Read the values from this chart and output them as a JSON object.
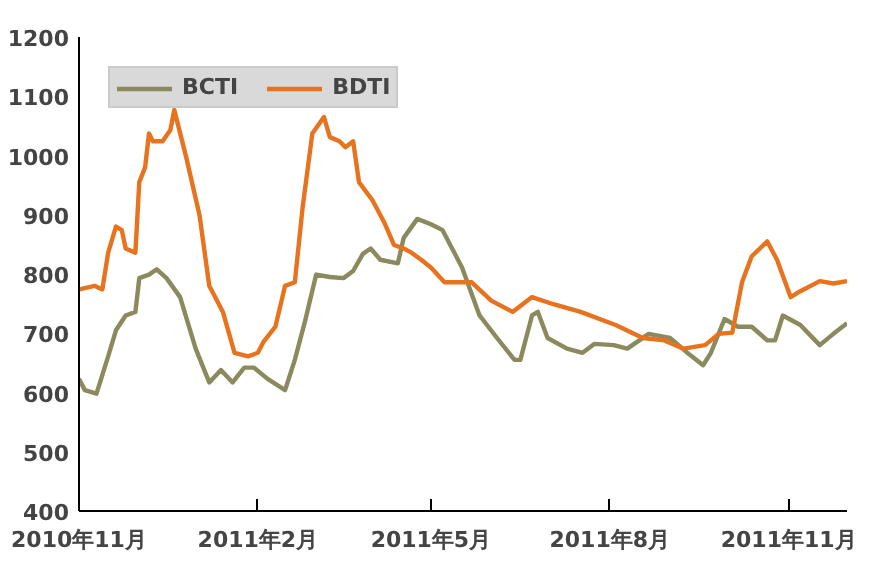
{
  "chart_data": {
    "type": "line",
    "series": [
      {
        "name": "BCTI",
        "color": "#8a8a5e",
        "x": [
          "2010-11-01",
          "2010-11-04",
          "2010-11-10",
          "2010-11-16",
          "2010-11-20",
          "2010-11-25",
          "2010-11-30",
          "2010-12-02",
          "2010-12-07",
          "2010-12-11",
          "2010-12-16",
          "2010-12-23",
          "2010-12-31",
          "2011-01-07",
          "2011-01-13",
          "2011-01-19",
          "2011-01-25",
          "2011-01-30",
          "2011-02-06",
          "2011-02-15",
          "2011-02-20",
          "2011-02-25",
          "2011-03-03",
          "2011-03-10",
          "2011-03-17",
          "2011-03-22",
          "2011-03-27",
          "2011-03-31",
          "2011-04-05",
          "2011-04-14",
          "2011-04-17",
          "2011-04-24",
          "2011-05-01",
          "2011-05-07",
          "2011-05-17",
          "2011-05-26",
          "2011-06-04",
          "2011-06-13",
          "2011-06-16",
          "2011-06-22",
          "2011-06-25",
          "2011-06-30",
          "2011-07-10",
          "2011-07-18",
          "2011-07-24",
          "2011-08-03",
          "2011-08-10",
          "2011-08-21",
          "2011-09-01",
          "2011-09-11",
          "2011-09-18",
          "2011-09-22",
          "2011-09-29",
          "2011-10-06",
          "2011-10-13",
          "2011-10-21",
          "2011-10-25",
          "2011-10-29",
          "2011-11-07",
          "2011-11-17",
          "2011-11-24",
          "2011-12-01"
        ],
        "values": [
          623,
          604,
          598,
          661,
          705,
          730,
          736,
          793,
          799,
          808,
          793,
          761,
          674,
          617,
          638,
          617,
          642,
          642,
          623,
          604,
          655,
          717,
          799,
          795,
          793,
          805,
          834,
          843,
          824,
          818,
          861,
          893,
          884,
          874,
          811,
          730,
          692,
          655,
          655,
          730,
          736,
          692,
          674,
          667,
          682,
          680,
          674,
          699,
          692,
          664,
          646,
          667,
          724,
          711,
          711,
          688,
          688,
          730,
          714,
          680,
          699,
          717
        ]
      },
      {
        "name": "BDTI",
        "color": "#e8731e",
        "x": [
          "2010-11-01",
          "2010-11-09",
          "2010-11-13",
          "2010-11-16",
          "2010-11-20",
          "2010-11-23",
          "2010-11-25",
          "2010-11-30",
          "2010-12-02",
          "2010-12-05",
          "2010-12-07",
          "2010-12-09",
          "2010-12-14",
          "2010-12-18",
          "2010-12-20",
          "2010-12-26",
          "2011-01-02",
          "2011-01-07",
          "2011-01-14",
          "2011-01-20",
          "2011-01-27",
          "2011-02-01",
          "2011-02-04",
          "2011-02-10",
          "2011-02-15",
          "2011-02-20",
          "2011-02-24",
          "2011-03-01",
          "2011-03-07",
          "2011-03-10",
          "2011-03-15",
          "2011-03-18",
          "2011-03-22",
          "2011-03-25",
          "2011-04-01",
          "2011-04-07",
          "2011-04-12",
          "2011-04-17",
          "2011-04-21",
          "2011-04-26",
          "2011-05-01",
          "2011-05-08",
          "2011-05-22",
          "2011-06-01",
          "2011-06-12",
          "2011-06-22",
          "2011-07-03",
          "2011-07-17",
          "2011-08-04",
          "2011-08-18",
          "2011-08-29",
          "2011-09-08",
          "2011-09-19",
          "2011-09-26",
          "2011-10-03",
          "2011-10-08",
          "2011-10-13",
          "2011-10-21",
          "2011-10-26",
          "2011-11-02",
          "2011-11-07",
          "2011-11-17",
          "2011-11-24",
          "2011-12-01"
        ],
        "values": [
          774,
          780,
          774,
          836,
          880,
          874,
          843,
          836,
          955,
          980,
          1037,
          1024,
          1024,
          1043,
          1077,
          999,
          899,
          780,
          736,
          667,
          661,
          667,
          686,
          711,
          780,
          786,
          912,
          1037,
          1065,
          1031,
          1024,
          1014,
          1024,
          955,
          924,
          887,
          849,
          843,
          836,
          824,
          811,
          786,
          786,
          755,
          736,
          761,
          749,
          736,
          714,
          692,
          688,
          674,
          680,
          699,
          701,
          786,
          830,
          855,
          824,
          761,
          771,
          788,
          784,
          788
        ]
      }
    ],
    "xlim": [
      "2010-11-01",
      "2011-12-01"
    ],
    "xticks": [
      {
        "value": "2010-11-01",
        "label": "2010年11月"
      },
      {
        "value": "2011-02-01",
        "label": "2011年2月"
      },
      {
        "value": "2011-05-01",
        "label": "2011年5月"
      },
      {
        "value": "2011-08-01",
        "label": "2011年8月"
      },
      {
        "value": "2011-11-01",
        "label": "2011年11月"
      }
    ],
    "ylim": [
      400,
      1200
    ],
    "yticks": [
      400,
      500,
      600,
      700,
      800,
      900,
      1000,
      1100,
      1200
    ],
    "grid": false,
    "legend": "top left",
    "marker": "none",
    "line_style": "solid"
  }
}
